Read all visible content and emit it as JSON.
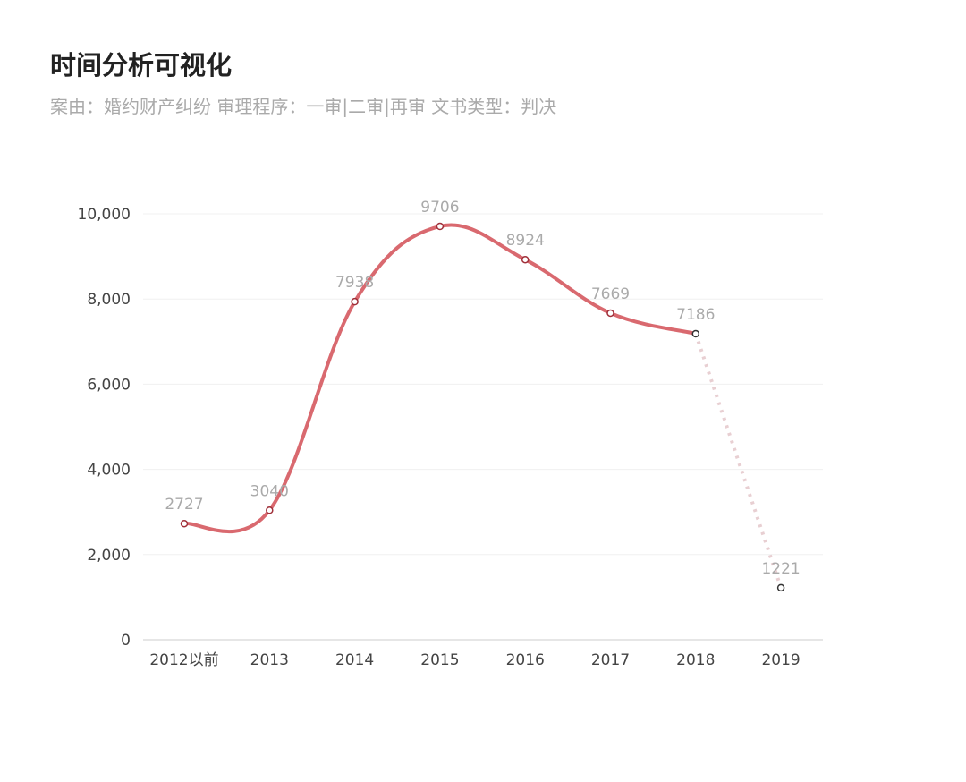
{
  "header": {
    "title": "时间分析可视化",
    "subtitle": "案由：婚约财产纠纷  审理程序：一审|二审|再审  文书类型：判决"
  },
  "chart_data": {
    "type": "line",
    "categories": [
      "2012以前",
      "2013",
      "2014",
      "2015",
      "2016",
      "2017",
      "2018",
      "2019"
    ],
    "values": [
      2727,
      3040,
      7938,
      9706,
      8924,
      7669,
      7186,
      1221
    ],
    "data_labels": [
      "2727",
      "3040",
      "7938",
      "9706",
      "8924",
      "7669",
      "7186",
      "1221"
    ],
    "yticks": [
      0,
      2000,
      4000,
      6000,
      8000,
      10000
    ],
    "ytick_labels": [
      "0",
      "2,000",
      "4,000",
      "6,000",
      "8,000",
      "10,000"
    ],
    "ylim": [
      0,
      10000
    ],
    "grid": true,
    "smooth": true,
    "dashed_last_segment": true,
    "colors": {
      "line": "#d9696f",
      "dashed": "#e8cfd2",
      "grid": "#f0f0f0",
      "point_last": "#333333"
    }
  }
}
